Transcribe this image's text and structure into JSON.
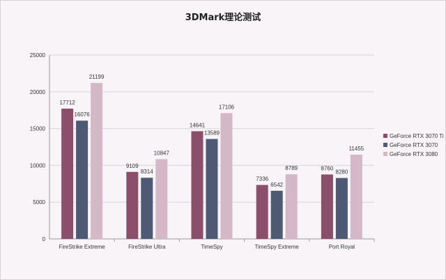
{
  "chart_data": {
    "type": "bar",
    "title": "3DMark理论测试",
    "categories": [
      "FireStrike Extreme",
      "FireStrike Ultra",
      "TimeSpy",
      "TimeSpy Extreme",
      "Port Royal"
    ],
    "series": [
      {
        "name": "GeForce RTX 3070 Ti",
        "color": "#8b4f6b",
        "values": [
          17712,
          9109,
          14641,
          7336,
          8760
        ]
      },
      {
        "name": "GeForce RTX 3070",
        "color": "#4e5a73",
        "values": [
          16076,
          8314,
          13589,
          6542,
          8280
        ]
      },
      {
        "name": "GeForce RTX 3080",
        "color": "#d4b8c8",
        "values": [
          21199,
          10847,
          17106,
          8789,
          11455
        ]
      }
    ],
    "yticks": [
      "0",
      "5000",
      "10000",
      "15000",
      "20000",
      "25000"
    ],
    "ylim": [
      0,
      25000
    ],
    "grid": true,
    "legend": "right",
    "xlabel": "",
    "ylabel": ""
  }
}
